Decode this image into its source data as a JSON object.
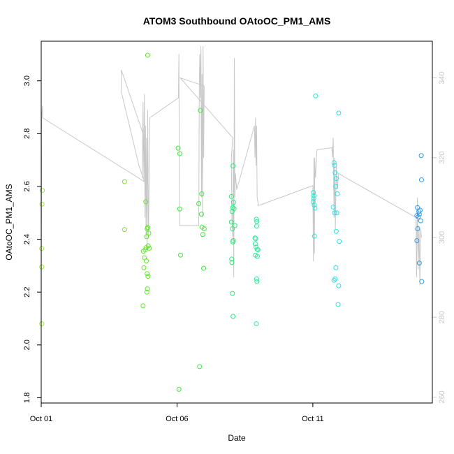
{
  "chart_data": {
    "type": "scatter",
    "title": "ATOM3 Southbound OAtoOC_PM1_AMS",
    "xlabel": "Date",
    "ylabel": "OAtoOC_PM1_AMS",
    "xlim": [
      1.0,
      15.4
    ],
    "ylim": [
      1.78,
      3.15
    ],
    "y2lim": [
      258.5,
      349.2
    ],
    "x_ticks": [
      {
        "value": 1,
        "label": "Oct 01"
      },
      {
        "value": 6,
        "label": "Oct 06"
      },
      {
        "value": 11,
        "label": "Oct 11"
      }
    ],
    "y_ticks": [
      1.8,
      2.0,
      2.2,
      2.4,
      2.6,
      2.8,
      3.0
    ],
    "y2_ticks": [
      260,
      280,
      300,
      320,
      340
    ],
    "grid": false,
    "colors": {
      "line": "#c8c8c8",
      "right_axis": "#c8c8c8"
    },
    "series": [
      {
        "points": [
          {
            "x": 1.02,
            "y": 2.08,
            "color": "#9be32e"
          },
          {
            "x": 1.02,
            "y": 2.295,
            "color": "#9be32e"
          },
          {
            "x": 1.02,
            "y": 2.365,
            "color": "#9be32e"
          },
          {
            "x": 1.03,
            "y": 2.533,
            "color": "#9be32e"
          },
          {
            "x": 1.04,
            "y": 2.585,
            "color": "#9be32e"
          },
          {
            "x": 4.07,
            "y": 2.618,
            "color": "#79e62a"
          },
          {
            "x": 4.07,
            "y": 2.437,
            "color": "#79e62a"
          },
          {
            "x": 4.75,
            "y": 2.148,
            "color": "#5fe82a"
          },
          {
            "x": 4.78,
            "y": 2.292,
            "color": "#5fe82a"
          },
          {
            "x": 4.8,
            "y": 2.33,
            "color": "#5fe82a"
          },
          {
            "x": 4.76,
            "y": 2.355,
            "color": "#5fe82a"
          },
          {
            "x": 4.83,
            "y": 2.36,
            "color": "#5fe82a"
          },
          {
            "x": 4.86,
            "y": 2.368,
            "color": "#5fe82a"
          },
          {
            "x": 4.88,
            "y": 2.41,
            "color": "#5fe82a"
          },
          {
            "x": 4.9,
            "y": 2.44,
            "color": "#5fe82a"
          },
          {
            "x": 4.92,
            "y": 2.445,
            "color": "#5fe82a"
          },
          {
            "x": 4.85,
            "y": 2.542,
            "color": "#5fe82a"
          },
          {
            "x": 4.87,
            "y": 2.318,
            "color": "#5fe82a"
          },
          {
            "x": 4.89,
            "y": 2.2,
            "color": "#5fe82a"
          },
          {
            "x": 4.91,
            "y": 2.212,
            "color": "#5fe82a"
          },
          {
            "x": 4.93,
            "y": 2.26,
            "color": "#5fe82a"
          },
          {
            "x": 4.9,
            "y": 2.27,
            "color": "#5fe82a"
          },
          {
            "x": 4.94,
            "y": 2.375,
            "color": "#5fe82a"
          },
          {
            "x": 4.96,
            "y": 2.423,
            "color": "#5fe82a"
          },
          {
            "x": 4.98,
            "y": 2.366,
            "color": "#5fe82a"
          },
          {
            "x": 4.92,
            "y": 3.097,
            "color": "#5fe82a"
          },
          {
            "x": 6.04,
            "y": 2.745,
            "color": "#3fe83d"
          },
          {
            "x": 6.1,
            "y": 2.724,
            "color": "#3fe83d"
          },
          {
            "x": 6.1,
            "y": 2.515,
            "color": "#3fe83d"
          },
          {
            "x": 6.13,
            "y": 2.34,
            "color": "#3fe83d"
          },
          {
            "x": 6.07,
            "y": 1.832,
            "color": "#3fe83d"
          },
          {
            "x": 6.8,
            "y": 2.535,
            "color": "#3fe83d"
          },
          {
            "x": 6.86,
            "y": 2.888,
            "color": "#3fe83d"
          },
          {
            "x": 6.91,
            "y": 2.572,
            "color": "#3fe83d"
          },
          {
            "x": 6.9,
            "y": 2.495,
            "color": "#3fe83d"
          },
          {
            "x": 6.92,
            "y": 2.446,
            "color": "#3fe83d"
          },
          {
            "x": 6.95,
            "y": 2.418,
            "color": "#3fe83d"
          },
          {
            "x": 7.0,
            "y": 2.44,
            "color": "#3fe83d"
          },
          {
            "x": 6.98,
            "y": 2.29,
            "color": "#3fe83d"
          },
          {
            "x": 6.83,
            "y": 1.918,
            "color": "#3fe83d"
          },
          {
            "x": 8.0,
            "y": 2.562,
            "color": "#2ee87a"
          },
          {
            "x": 8.03,
            "y": 2.505,
            "color": "#2ee87a"
          },
          {
            "x": 8.0,
            "y": 2.465,
            "color": "#2ee87a"
          },
          {
            "x": 8.06,
            "y": 2.678,
            "color": "#2ee87a"
          },
          {
            "x": 8.08,
            "y": 2.54,
            "color": "#2ee87a"
          },
          {
            "x": 8.05,
            "y": 2.52,
            "color": "#2ee87a"
          },
          {
            "x": 8.1,
            "y": 2.516,
            "color": "#2ee87a"
          },
          {
            "x": 8.04,
            "y": 2.44,
            "color": "#2ee87a"
          },
          {
            "x": 8.13,
            "y": 2.452,
            "color": "#2ee87a"
          },
          {
            "x": 8.07,
            "y": 2.395,
            "color": "#2ee87a"
          },
          {
            "x": 8.05,
            "y": 2.39,
            "color": "#2ee87a"
          },
          {
            "x": 8.01,
            "y": 2.325,
            "color": "#2ee87a"
          },
          {
            "x": 8.02,
            "y": 2.312,
            "color": "#2ee87a"
          },
          {
            "x": 8.04,
            "y": 2.195,
            "color": "#2ee87a"
          },
          {
            "x": 8.06,
            "y": 2.108,
            "color": "#2ee87a"
          },
          {
            "x": 8.92,
            "y": 2.476,
            "color": "#2ee89a"
          },
          {
            "x": 8.94,
            "y": 2.467,
            "color": "#2ee89a"
          },
          {
            "x": 8.93,
            "y": 2.45,
            "color": "#2ee89a"
          },
          {
            "x": 8.87,
            "y": 2.405,
            "color": "#2ee89a"
          },
          {
            "x": 8.9,
            "y": 2.402,
            "color": "#2ee89a"
          },
          {
            "x": 8.88,
            "y": 2.383,
            "color": "#2ee89a"
          },
          {
            "x": 8.91,
            "y": 2.37,
            "color": "#2ee89a"
          },
          {
            "x": 8.95,
            "y": 2.362,
            "color": "#2ee89a"
          },
          {
            "x": 8.98,
            "y": 2.36,
            "color": "#2ee89a"
          },
          {
            "x": 8.89,
            "y": 2.34,
            "color": "#2ee89a"
          },
          {
            "x": 8.96,
            "y": 2.335,
            "color": "#2ee89a"
          },
          {
            "x": 8.93,
            "y": 2.25,
            "color": "#2ee89a"
          },
          {
            "x": 8.94,
            "y": 2.24,
            "color": "#2ee89a"
          },
          {
            "x": 8.92,
            "y": 2.08,
            "color": "#2ee89a"
          },
          {
            "x": 11.1,
            "y": 2.943,
            "color": "#2ee6d2"
          },
          {
            "x": 11.02,
            "y": 2.577,
            "color": "#2ee6d2"
          },
          {
            "x": 11.04,
            "y": 2.565,
            "color": "#2ee6d2"
          },
          {
            "x": 11.03,
            "y": 2.555,
            "color": "#2ee6d2"
          },
          {
            "x": 11.01,
            "y": 2.542,
            "color": "#2ee6d2"
          },
          {
            "x": 11.05,
            "y": 2.53,
            "color": "#2ee6d2"
          },
          {
            "x": 11.08,
            "y": 2.518,
            "color": "#2ee6d2"
          },
          {
            "x": 11.06,
            "y": 2.412,
            "color": "#2ee6d2"
          },
          {
            "x": 11.78,
            "y": 2.69,
            "color": "#2ee0e6"
          },
          {
            "x": 11.8,
            "y": 2.68,
            "color": "#2ee0e6"
          },
          {
            "x": 11.82,
            "y": 2.652,
            "color": "#2ee0e6"
          },
          {
            "x": 11.86,
            "y": 2.63,
            "color": "#2ee0e6"
          },
          {
            "x": 11.84,
            "y": 2.6,
            "color": "#2ee0e6"
          },
          {
            "x": 11.9,
            "y": 2.572,
            "color": "#2ee0e6"
          },
          {
            "x": 11.75,
            "y": 2.522,
            "color": "#2ee0e6"
          },
          {
            "x": 11.8,
            "y": 2.5,
            "color": "#2ee0e6"
          },
          {
            "x": 11.88,
            "y": 2.5,
            "color": "#2ee0e6"
          },
          {
            "x": 11.86,
            "y": 2.43,
            "color": "#2ee0e6"
          },
          {
            "x": 11.97,
            "y": 2.392,
            "color": "#2ee0e6"
          },
          {
            "x": 11.85,
            "y": 2.292,
            "color": "#2ee0e6"
          },
          {
            "x": 11.82,
            "y": 2.25,
            "color": "#2ee0e6"
          },
          {
            "x": 11.78,
            "y": 2.245,
            "color": "#2ee0e6"
          },
          {
            "x": 11.95,
            "y": 2.224,
            "color": "#2ee0e6"
          },
          {
            "x": 11.93,
            "y": 2.153,
            "color": "#2ee0e6"
          },
          {
            "x": 11.95,
            "y": 2.878,
            "color": "#2ee0e6"
          },
          {
            "x": 14.85,
            "y": 2.52,
            "color": "#2e9ae6"
          },
          {
            "x": 14.9,
            "y": 2.505,
            "color": "#2e9ae6"
          },
          {
            "x": 14.95,
            "y": 2.51,
            "color": "#2e9ae6"
          },
          {
            "x": 14.92,
            "y": 2.495,
            "color": "#2e9ae6"
          },
          {
            "x": 14.88,
            "y": 2.485,
            "color": "#2e9ae6"
          },
          {
            "x": 14.97,
            "y": 2.47,
            "color": "#2e9ae6"
          },
          {
            "x": 14.83,
            "y": 2.49,
            "color": "#2e9ae6"
          },
          {
            "x": 14.86,
            "y": 2.44,
            "color": "#2e9ae6"
          },
          {
            "x": 14.83,
            "y": 2.395,
            "color": "#2e9ae6"
          },
          {
            "x": 14.92,
            "y": 2.31,
            "color": "#2e9ae6"
          },
          {
            "x": 15.01,
            "y": 2.24,
            "color": "#2e9ae6"
          },
          {
            "x": 15.0,
            "y": 2.625,
            "color": "#2e9ae6"
          },
          {
            "x": 14.99,
            "y": 2.717,
            "color": "#2e9ae6"
          }
        ]
      },
      {
        "axis": "right",
        "line": [
          [
            1.0,
            280.0
          ],
          [
            1.02,
            331.0
          ],
          [
            1.05,
            333.0
          ],
          [
            1.05,
            330.0
          ],
          [
            4.8,
            314.0
          ],
          [
            4.6,
            318.0
          ],
          [
            3.95,
            336.5
          ],
          [
            3.95,
            342.0
          ],
          [
            4.75,
            326.0
          ],
          [
            4.72,
            315.0
          ],
          [
            4.75,
            334.0
          ],
          [
            4.78,
            314.0
          ],
          [
            4.8,
            336.0
          ],
          [
            4.82,
            305.0
          ],
          [
            4.84,
            328.0
          ],
          [
            4.86,
            300.0
          ],
          [
            4.88,
            325.0
          ],
          [
            4.9,
            298.0
          ],
          [
            4.92,
            332.0
          ],
          [
            4.95,
            300.0
          ],
          [
            4.97,
            312.0
          ],
          [
            5.0,
            330.0
          ],
          [
            6.05,
            335.0
          ],
          [
            6.07,
            346.0
          ],
          [
            6.09,
            303.0
          ],
          [
            6.11,
            303.0
          ],
          [
            6.8,
            303.0
          ],
          [
            6.82,
            338.0
          ],
          [
            6.84,
            346.0
          ],
          [
            6.86,
            335.0
          ],
          [
            6.88,
            348.0
          ],
          [
            6.9,
            310.0
          ],
          [
            6.92,
            341.0
          ],
          [
            6.94,
            305.0
          ],
          [
            6.96,
            348.0
          ],
          [
            6.98,
            320.0
          ],
          [
            7.0,
            338.0
          ],
          [
            6.12,
            340.0
          ],
          [
            8.05,
            325.0
          ],
          [
            8.0,
            320.0
          ],
          [
            8.02,
            305.0
          ],
          [
            8.05,
            300.0
          ],
          [
            8.07,
            322.0
          ],
          [
            8.09,
            290.0
          ],
          [
            8.11,
            345.0
          ],
          [
            8.13,
            310.0
          ],
          [
            8.15,
            316.0
          ],
          [
            8.2,
            312.0
          ],
          [
            8.85,
            328.0
          ],
          [
            8.87,
            320.0
          ],
          [
            8.89,
            330.0
          ],
          [
            8.91,
            318.0
          ],
          [
            8.93,
            328.0
          ],
          [
            8.95,
            310.0
          ],
          [
            9.0,
            308.0
          ],
          [
            11.0,
            313.0
          ],
          [
            11.02,
            294.0
          ],
          [
            11.04,
            320.0
          ],
          [
            11.06,
            296.0
          ],
          [
            11.07,
            320.0
          ],
          [
            11.09,
            316.0
          ],
          [
            11.1,
            315.0
          ],
          [
            11.15,
            322.0
          ],
          [
            11.7,
            322.5
          ],
          [
            11.72,
            320.0
          ],
          [
            11.75,
            325.0
          ],
          [
            11.78,
            305.0
          ],
          [
            11.8,
            320.0
          ],
          [
            11.83,
            302.0
          ],
          [
            11.86,
            318.0
          ],
          [
            11.9,
            312.0
          ],
          [
            11.95,
            316.0
          ],
          [
            14.8,
            305.0
          ],
          [
            14.82,
            290.0
          ],
          [
            14.85,
            310.0
          ],
          [
            14.88,
            292.0
          ],
          [
            14.91,
            303.0
          ],
          [
            14.94,
            288.0
          ],
          [
            14.97,
            302.0
          ],
          [
            15.0,
            300.0
          ]
        ]
      }
    ]
  }
}
